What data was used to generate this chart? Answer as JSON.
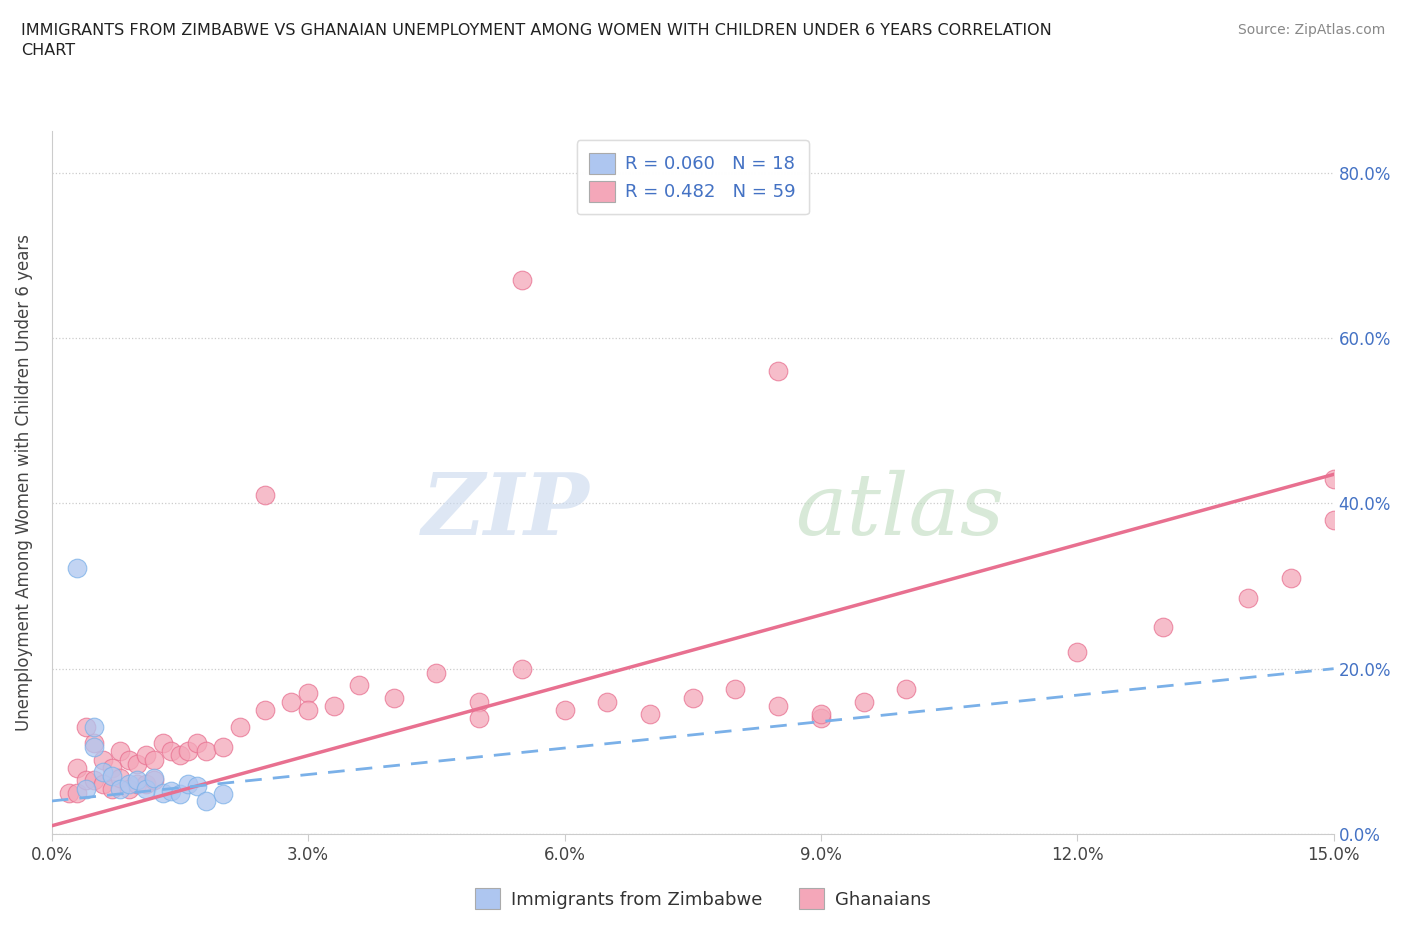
{
  "title": "IMMIGRANTS FROM ZIMBABWE VS GHANAIAN UNEMPLOYMENT AMONG WOMEN WITH CHILDREN UNDER 6 YEARS CORRELATION\nCHART",
  "source": "Source: ZipAtlas.com",
  "ylabel": "Unemployment Among Women with Children Under 6 years",
  "x_min": 0.0,
  "x_max": 0.15,
  "y_min": 0.0,
  "y_max": 0.85,
  "x_ticks": [
    0.0,
    0.03,
    0.06,
    0.09,
    0.12,
    0.15
  ],
  "x_tick_labels": [
    "0.0%",
    "3.0%",
    "6.0%",
    "9.0%",
    "12.0%",
    "15.0%"
  ],
  "y_ticks": [
    0.0,
    0.2,
    0.4,
    0.6,
    0.8
  ],
  "y_tick_labels": [
    "0.0%",
    "20.0%",
    "40.0%",
    "60.0%",
    "80.0%"
  ],
  "legend_r1": "R = 0.060   N = 18",
  "legend_r2": "R = 0.482   N = 59",
  "legend_label1": "Immigrants from Zimbabwe",
  "legend_label2": "Ghanaians",
  "color1": "#aec6f0",
  "color2": "#f4a7b9",
  "line_color1": "#7ab0e8",
  "line_color2": "#e87090",
  "watermark_zip": "ZIP",
  "watermark_atlas": "atlas",
  "zimbabwe_x": [
    0.003,
    0.004,
    0.005,
    0.005,
    0.006,
    0.007,
    0.008,
    0.009,
    0.01,
    0.011,
    0.012,
    0.013,
    0.014,
    0.015,
    0.016,
    0.017,
    0.018,
    0.02
  ],
  "zimbabwe_y": [
    0.322,
    0.055,
    0.13,
    0.105,
    0.075,
    0.07,
    0.055,
    0.06,
    0.065,
    0.055,
    0.068,
    0.05,
    0.052,
    0.048,
    0.06,
    0.058,
    0.04,
    0.048
  ],
  "ghana_x": [
    0.002,
    0.003,
    0.003,
    0.004,
    0.004,
    0.005,
    0.005,
    0.006,
    0.006,
    0.007,
    0.007,
    0.008,
    0.008,
    0.009,
    0.009,
    0.01,
    0.01,
    0.011,
    0.011,
    0.012,
    0.012,
    0.013,
    0.014,
    0.015,
    0.016,
    0.017,
    0.018,
    0.02,
    0.022,
    0.025,
    0.028,
    0.03,
    0.033,
    0.036,
    0.04,
    0.045,
    0.05,
    0.055,
    0.055,
    0.06,
    0.065,
    0.07,
    0.075,
    0.08,
    0.085,
    0.09,
    0.095,
    0.1,
    0.085,
    0.12,
    0.13,
    0.14,
    0.145,
    0.15,
    0.15,
    0.025,
    0.03,
    0.05,
    0.09
  ],
  "ghana_y": [
    0.05,
    0.08,
    0.05,
    0.13,
    0.065,
    0.11,
    0.065,
    0.09,
    0.06,
    0.08,
    0.055,
    0.1,
    0.068,
    0.09,
    0.055,
    0.085,
    0.06,
    0.095,
    0.06,
    0.09,
    0.065,
    0.11,
    0.1,
    0.095,
    0.1,
    0.11,
    0.1,
    0.105,
    0.13,
    0.15,
    0.16,
    0.17,
    0.155,
    0.18,
    0.165,
    0.195,
    0.16,
    0.2,
    0.67,
    0.15,
    0.16,
    0.145,
    0.165,
    0.175,
    0.155,
    0.14,
    0.16,
    0.175,
    0.56,
    0.22,
    0.25,
    0.285,
    0.31,
    0.38,
    0.43,
    0.41,
    0.15,
    0.14,
    0.145
  ],
  "zim_line_x0": 0.0,
  "zim_line_x1": 0.15,
  "zim_line_y0": 0.04,
  "zim_line_y1": 0.2,
  "ghana_line_x0": 0.0,
  "ghana_line_x1": 0.15,
  "ghana_line_y0": 0.01,
  "ghana_line_y1": 0.435
}
